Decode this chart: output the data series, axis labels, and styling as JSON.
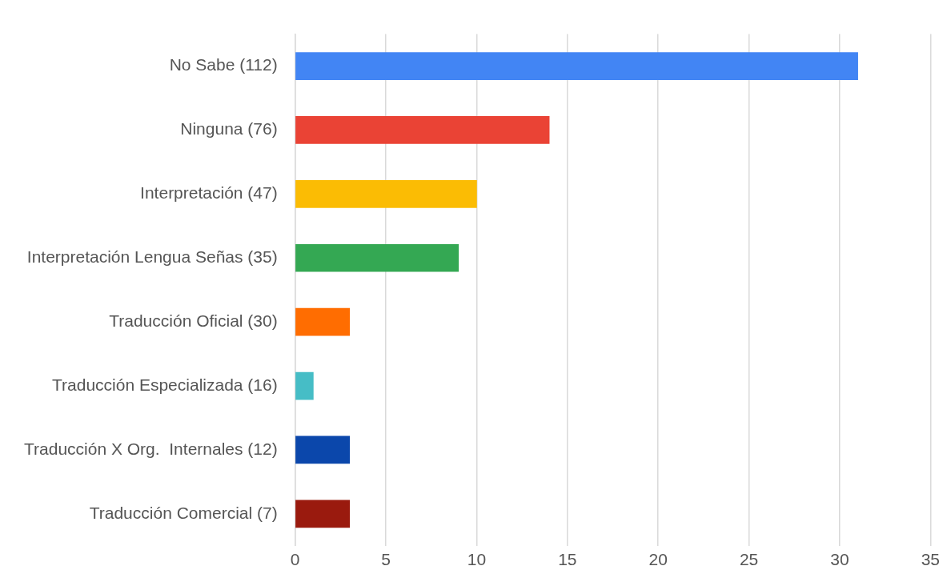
{
  "chart_data": {
    "type": "bar",
    "orientation": "horizontal",
    "categories": [
      "No Sabe (112)",
      "Ninguna (76)",
      "Interpretación (47)",
      "Interpretación Lengua Señas (35)",
      "Traducción Oficial (30)",
      "Traducción Especializada (16)",
      "Traducción X Org.  Internales (12)",
      "Traducción Comercial (7)"
    ],
    "values": [
      31,
      14,
      10,
      9,
      3,
      1,
      3,
      3
    ],
    "colors": [
      "#4285f4",
      "#ea4335",
      "#fbbc04",
      "#34a853",
      "#ff6d01",
      "#46bdc6",
      "#0b47ab",
      "#9a1a0e"
    ],
    "xlim": [
      0,
      35
    ],
    "xticks": [
      0,
      5,
      10,
      15,
      20,
      25,
      30,
      35
    ],
    "grid": "x",
    "legend": false
  }
}
